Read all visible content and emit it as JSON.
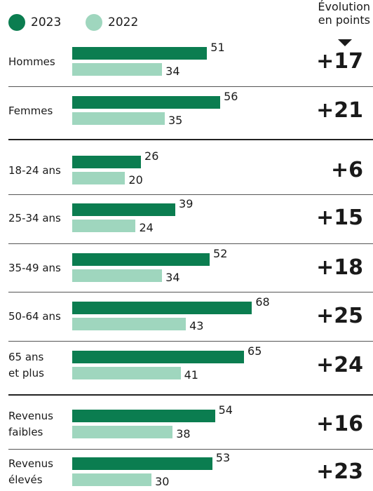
{
  "chart_data": {
    "type": "bar",
    "orientation": "horizontal",
    "categories": [
      "Hommes",
      "Femmes",
      "18-24 ans",
      "25-34 ans",
      "35-49 ans",
      "50-64 ans",
      "65 ans\net plus",
      "Revenus\nfaibles",
      "Revenus\nélevés"
    ],
    "series": [
      {
        "name": "2023",
        "color": "#0b7d50",
        "values": [
          51,
          56,
          26,
          39,
          52,
          68,
          65,
          54,
          53
        ]
      },
      {
        "name": "2022",
        "color": "#9fd6be",
        "values": [
          34,
          35,
          20,
          24,
          34,
          43,
          41,
          38,
          30
        ]
      }
    ],
    "evolution": {
      "title": "Évolution\nen points",
      "values": [
        17,
        21,
        6,
        15,
        18,
        25,
        24,
        16,
        23
      ],
      "value_labels": [
        "+17",
        "+21",
        "+6",
        "+15",
        "+18",
        "+25",
        "+24",
        "+16",
        "+23"
      ]
    },
    "legend": "top-left"
  }
}
